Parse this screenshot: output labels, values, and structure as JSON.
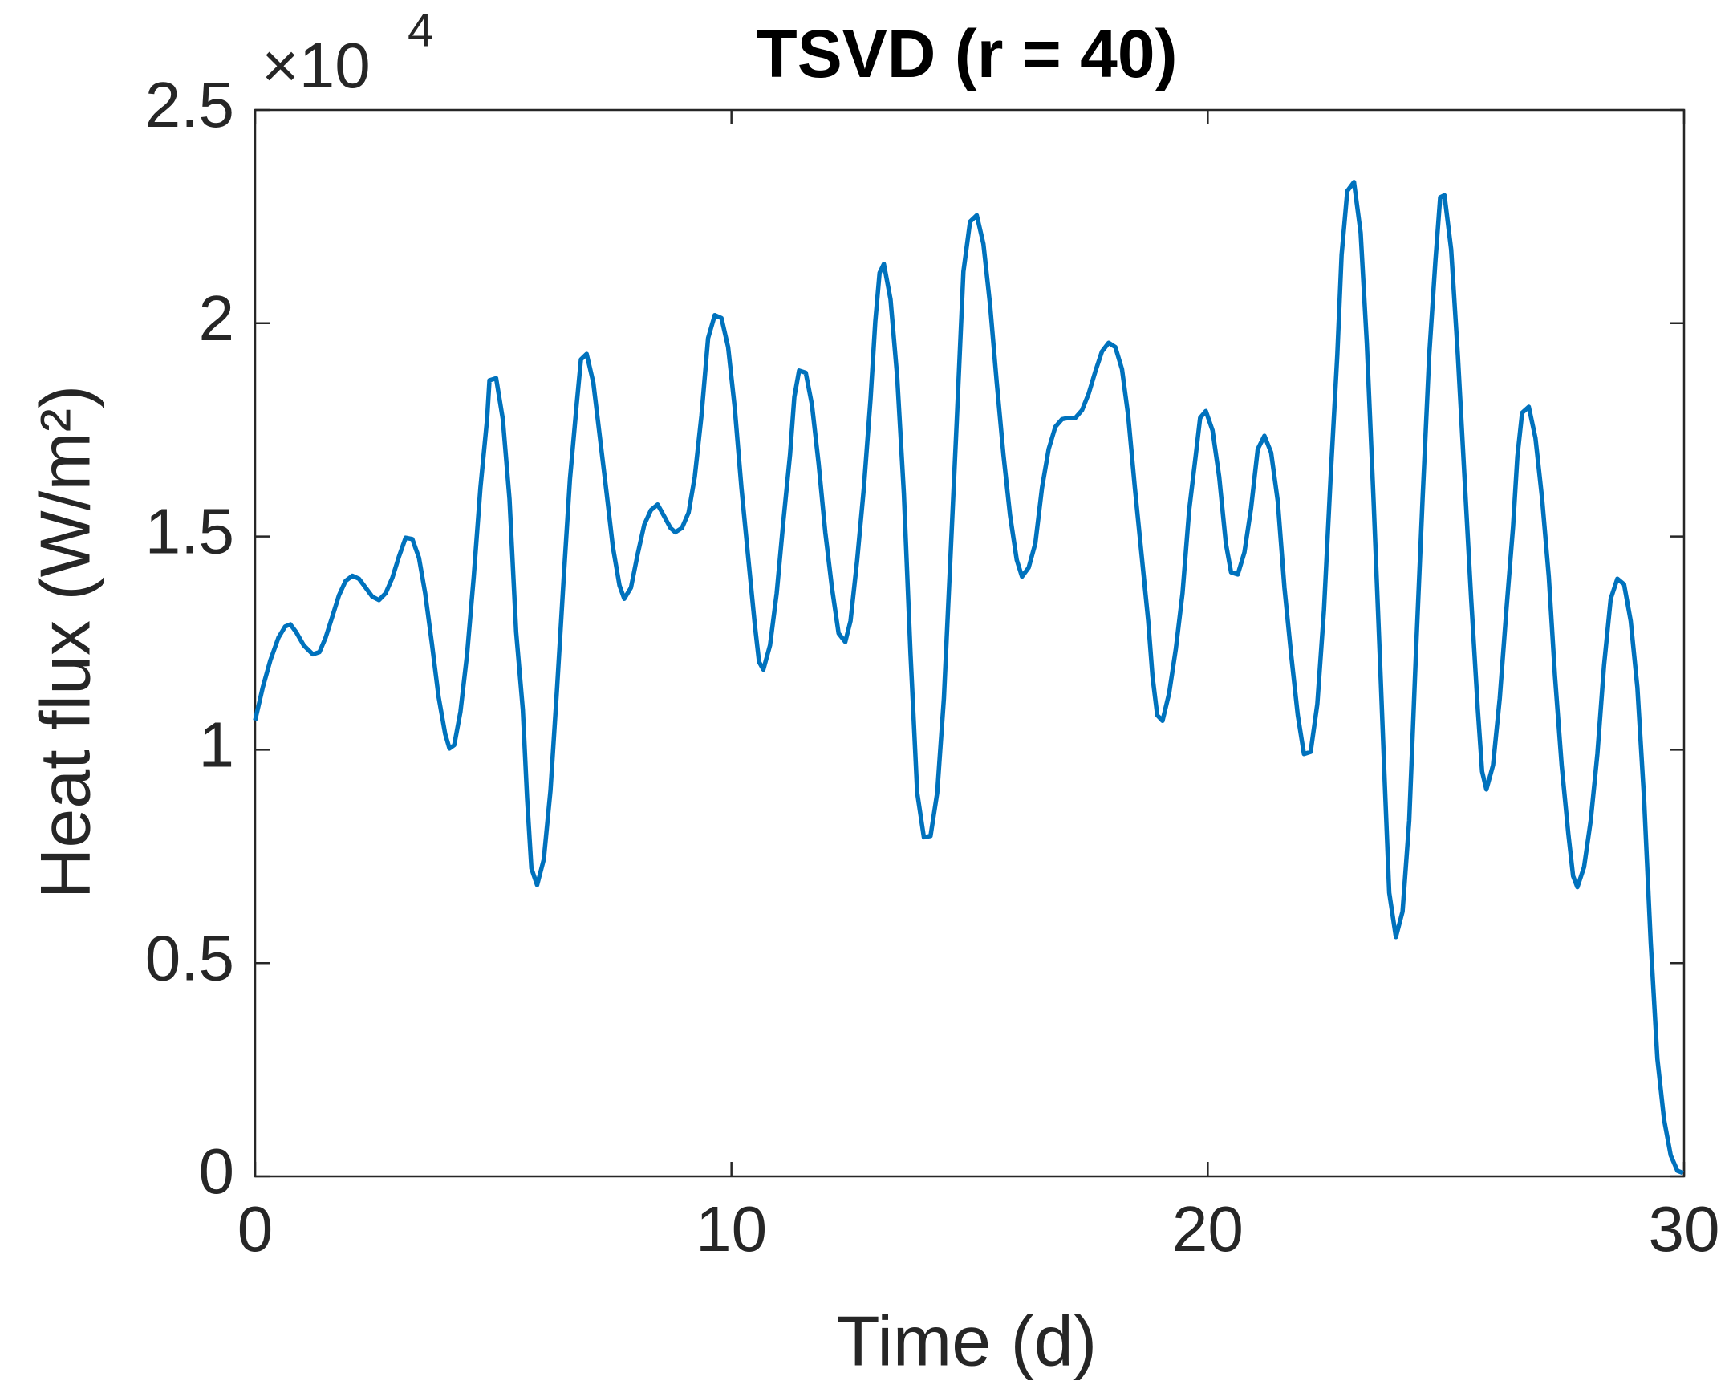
{
  "chart_data": {
    "type": "line",
    "title": "TSVD (r = 40)",
    "xlabel": "Time (d)",
    "ylabel": "Heat flux (W/m²)",
    "y_multiplier": "×10",
    "y_multiplier_exponent": "4",
    "xlim": [
      0,
      30
    ],
    "ylim": [
      0,
      2.5
    ],
    "xticks": [
      0,
      10,
      20,
      30
    ],
    "yticks": [
      0,
      0.5,
      1,
      1.5,
      2,
      2.5
    ],
    "box": true,
    "series": [
      {
        "name": "TSVD",
        "color": "#0072bd",
        "x": [
          0,
          0.16,
          0.32,
          0.49,
          0.63,
          0.74,
          0.86,
          1.02,
          1.21,
          1.35,
          1.48,
          1.62,
          1.76,
          1.9,
          2.04,
          2.18,
          2.32,
          2.46,
          2.6,
          2.74,
          2.88,
          3.02,
          3.16,
          3.3,
          3.44,
          3.57,
          3.71,
          3.85,
          3.99,
          4.08,
          4.18,
          4.31,
          4.45,
          4.59,
          4.73,
          4.87,
          4.92,
          5.06,
          5.2,
          5.34,
          5.48,
          5.62,
          5.71,
          5.8,
          5.92,
          6.06,
          6.2,
          6.34,
          6.48,
          6.61,
          6.75,
          6.84,
          6.96,
          7.1,
          7.24,
          7.38,
          7.51,
          7.65,
          7.75,
          7.89,
          8.03,
          8.17,
          8.31,
          8.45,
          8.58,
          8.72,
          8.82,
          8.96,
          9.1,
          9.23,
          9.37,
          9.51,
          9.65,
          9.79,
          9.93,
          10.07,
          10.21,
          10.35,
          10.49,
          10.58,
          10.67,
          10.81,
          10.95,
          11.09,
          11.23,
          11.32,
          11.42,
          11.56,
          11.69,
          11.83,
          11.97,
          12.11,
          12.25,
          12.39,
          12.5,
          12.64,
          12.78,
          12.92,
          13.02,
          13.11,
          13.2,
          13.34,
          13.48,
          13.62,
          13.76,
          13.9,
          14.04,
          14.18,
          14.32,
          14.46,
          14.59,
          14.73,
          14.87,
          15.01,
          15.15,
          15.29,
          15.43,
          15.57,
          15.71,
          15.85,
          15.99,
          16.1,
          16.24,
          16.38,
          16.52,
          16.66,
          16.8,
          16.94,
          17.08,
          17.22,
          17.36,
          17.5,
          17.64,
          17.78,
          17.92,
          18.06,
          18.2,
          18.33,
          18.47,
          18.61,
          18.75,
          18.84,
          18.94,
          19.05,
          19.19,
          19.33,
          19.47,
          19.61,
          19.75,
          19.84,
          19.96,
          20.1,
          20.24,
          20.38,
          20.49,
          20.63,
          20.77,
          20.91,
          21.05,
          21.19,
          21.33,
          21.47,
          21.61,
          21.75,
          21.89,
          22.02,
          22.16,
          22.3,
          22.44,
          22.58,
          22.72,
          22.81,
          22.93,
          23.07,
          23.21,
          23.34,
          23.48,
          23.62,
          23.72,
          23.81,
          23.95,
          24.09,
          24.23,
          24.37,
          24.51,
          24.65,
          24.78,
          24.88,
          24.97,
          25.11,
          25.25,
          25.39,
          25.53,
          25.67,
          25.76,
          25.85,
          25.99,
          26.13,
          26.27,
          26.41,
          26.5,
          26.6,
          26.74,
          26.88,
          27.02,
          27.16,
          27.29,
          27.43,
          27.57,
          27.67,
          27.76,
          27.9,
          28.04,
          28.18,
          28.32,
          28.46,
          28.6,
          28.74,
          28.88,
          29.02,
          29.16,
          29.3,
          29.44,
          29.58,
          29.72,
          29.86,
          29.98
        ],
        "values": [
          1.069,
          1.146,
          1.21,
          1.263,
          1.289,
          1.294,
          1.276,
          1.245,
          1.224,
          1.229,
          1.263,
          1.312,
          1.362,
          1.396,
          1.408,
          1.401,
          1.38,
          1.359,
          1.351,
          1.367,
          1.403,
          1.453,
          1.497,
          1.494,
          1.45,
          1.367,
          1.25,
          1.125,
          1.037,
          1.003,
          1.011,
          1.089,
          1.224,
          1.406,
          1.614,
          1.775,
          1.866,
          1.871,
          1.775,
          1.588,
          1.276,
          1.094,
          0.886,
          0.722,
          0.683,
          0.743,
          0.904,
          1.146,
          1.406,
          1.635,
          1.809,
          1.915,
          1.928,
          1.861,
          1.731,
          1.601,
          1.476,
          1.385,
          1.354,
          1.38,
          1.458,
          1.528,
          1.562,
          1.575,
          1.549,
          1.52,
          1.51,
          1.52,
          1.556,
          1.64,
          1.783,
          1.965,
          2.019,
          2.012,
          1.944,
          1.801,
          1.614,
          1.453,
          1.294,
          1.206,
          1.188,
          1.245,
          1.367,
          1.536,
          1.692,
          1.827,
          1.889,
          1.884,
          1.809,
          1.671,
          1.51,
          1.38,
          1.273,
          1.253,
          1.302,
          1.445,
          1.614,
          1.822,
          2.004,
          2.118,
          2.139,
          2.056,
          1.874,
          1.601,
          1.224,
          0.899,
          0.795,
          0.798,
          0.899,
          1.12,
          1.432,
          1.77,
          2.121,
          2.238,
          2.253,
          2.186,
          2.043,
          1.861,
          1.692,
          1.549,
          1.445,
          1.406,
          1.427,
          1.484,
          1.614,
          1.705,
          1.757,
          1.775,
          1.778,
          1.778,
          1.796,
          1.835,
          1.887,
          1.934,
          1.954,
          1.944,
          1.892,
          1.783,
          1.614,
          1.458,
          1.302,
          1.172,
          1.081,
          1.068,
          1.133,
          1.237,
          1.367,
          1.562,
          1.692,
          1.778,
          1.794,
          1.749,
          1.64,
          1.484,
          1.416,
          1.411,
          1.463,
          1.567,
          1.705,
          1.736,
          1.697,
          1.583,
          1.38,
          1.224,
          1.081,
          0.99,
          0.995,
          1.107,
          1.328,
          1.64,
          1.926,
          2.16,
          2.31,
          2.331,
          2.212,
          1.952,
          1.588,
          1.198,
          0.912,
          0.665,
          0.561,
          0.621,
          0.834,
          1.224,
          1.588,
          1.926,
          2.147,
          2.295,
          2.3,
          2.173,
          1.926,
          1.64,
          1.354,
          1.094,
          0.949,
          0.907,
          0.964,
          1.12,
          1.328,
          1.523,
          1.687,
          1.79,
          1.804,
          1.731,
          1.588,
          1.406,
          1.172,
          0.964,
          0.803,
          0.704,
          0.678,
          0.725,
          0.834,
          0.99,
          1.198,
          1.354,
          1.401,
          1.388,
          1.302,
          1.146,
          0.886,
          0.548,
          0.275,
          0.133,
          0.049,
          0.013,
          0.008
        ]
      }
    ]
  }
}
